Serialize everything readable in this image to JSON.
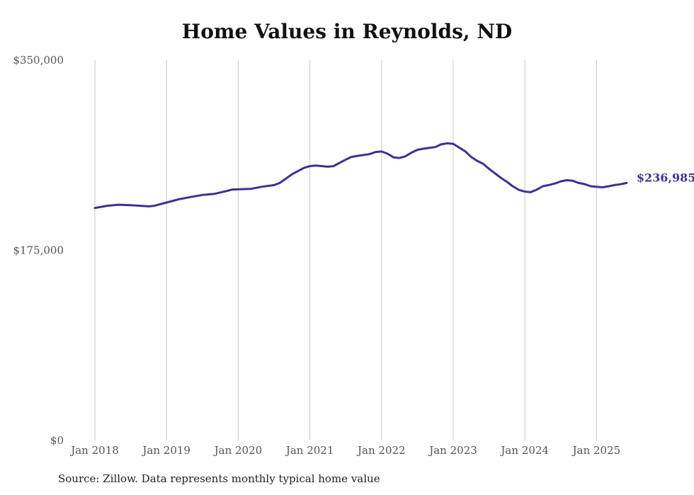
{
  "title": "Home Values in Reynolds, ND",
  "source": "Source: Zillow. Data represents monthly typical home value",
  "end_label": "$236,985",
  "colors": {
    "line": "#3a3394",
    "grid": "#c8c8c8",
    "axis_text": "#555555"
  },
  "chart_data": {
    "type": "line",
    "title": "Home Values in Reynolds, ND",
    "xlabel": "",
    "ylabel": "",
    "ylim": [
      0,
      350000
    ],
    "y_ticks": [
      {
        "value": 0,
        "label": "$0"
      },
      {
        "value": 175000,
        "label": "$175,000"
      },
      {
        "value": 350000,
        "label": "$350,000"
      }
    ],
    "x_ticks": [
      {
        "value": 2018.0,
        "label": "Jan 2018"
      },
      {
        "value": 2019.0,
        "label": "Jan 2019"
      },
      {
        "value": 2020.0,
        "label": "Jan 2020"
      },
      {
        "value": 2021.0,
        "label": "Jan 2021"
      },
      {
        "value": 2022.0,
        "label": "Jan 2022"
      },
      {
        "value": 2023.0,
        "label": "Jan 2023"
      },
      {
        "value": 2024.0,
        "label": "Jan 2024"
      },
      {
        "value": 2025.0,
        "label": "Jan 2025"
      }
    ],
    "grid": "vertical",
    "series": [
      {
        "points": [
          [
            2018.0,
            214000
          ],
          [
            2018.17,
            216000
          ],
          [
            2018.33,
            217000
          ],
          [
            2018.5,
            216500
          ],
          [
            2018.75,
            215500
          ],
          [
            2018.83,
            216000
          ],
          [
            2019.0,
            219000
          ],
          [
            2019.17,
            222000
          ],
          [
            2019.33,
            224000
          ],
          [
            2019.5,
            226000
          ],
          [
            2019.67,
            227000
          ],
          [
            2019.83,
            229500
          ],
          [
            2019.92,
            231000
          ],
          [
            2020.17,
            231500
          ],
          [
            2020.33,
            233500
          ],
          [
            2020.5,
            235000
          ],
          [
            2020.58,
            237000
          ],
          [
            2020.75,
            245000
          ],
          [
            2020.92,
            251000
          ],
          [
            2021.0,
            252500
          ],
          [
            2021.08,
            253000
          ],
          [
            2021.25,
            252000
          ],
          [
            2021.33,
            252500
          ],
          [
            2021.5,
            258500
          ],
          [
            2021.58,
            261000
          ],
          [
            2021.67,
            262000
          ],
          [
            2021.83,
            263500
          ],
          [
            2021.92,
            265500
          ],
          [
            2022.0,
            266000
          ],
          [
            2022.08,
            264000
          ],
          [
            2022.17,
            260500
          ],
          [
            2022.25,
            260000
          ],
          [
            2022.33,
            261500
          ],
          [
            2022.42,
            265000
          ],
          [
            2022.5,
            267500
          ],
          [
            2022.58,
            268500
          ],
          [
            2022.75,
            270000
          ],
          [
            2022.83,
            272500
          ],
          [
            2022.92,
            273500
          ],
          [
            2023.0,
            273000
          ],
          [
            2023.17,
            266000
          ],
          [
            2023.25,
            261000
          ],
          [
            2023.33,
            257500
          ],
          [
            2023.42,
            254500
          ],
          [
            2023.5,
            250000
          ],
          [
            2023.58,
            246000
          ],
          [
            2023.67,
            241500
          ],
          [
            2023.75,
            238000
          ],
          [
            2023.83,
            234000
          ],
          [
            2023.92,
            230500
          ],
          [
            2024.0,
            229000
          ],
          [
            2024.08,
            228500
          ],
          [
            2024.17,
            231000
          ],
          [
            2024.25,
            234000
          ],
          [
            2024.33,
            235000
          ],
          [
            2024.42,
            236500
          ],
          [
            2024.5,
            238500
          ],
          [
            2024.58,
            239500
          ],
          [
            2024.67,
            239000
          ],
          [
            2024.75,
            237000
          ],
          [
            2024.83,
            236000
          ],
          [
            2024.92,
            234000
          ],
          [
            2025.0,
            233500
          ],
          [
            2025.08,
            233000
          ],
          [
            2025.17,
            234000
          ],
          [
            2025.25,
            235000
          ],
          [
            2025.33,
            235800
          ],
          [
            2025.42,
            236985
          ]
        ]
      }
    ]
  }
}
